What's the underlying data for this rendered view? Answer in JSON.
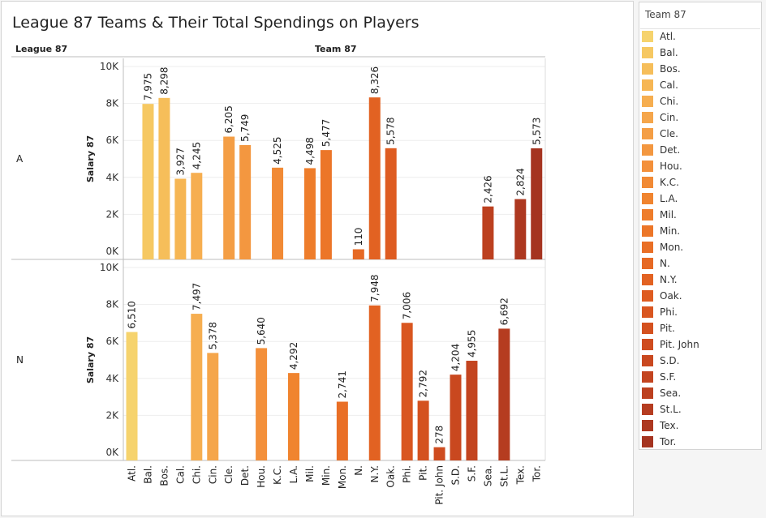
{
  "title": "League 87 Teams & Their Total Spendings on Players",
  "headers": {
    "row_field": "League 87",
    "col_field": "Team 87"
  },
  "legend": {
    "title": "Team 87",
    "items": [
      {
        "label": "Atl.",
        "color": "#f6d36d"
      },
      {
        "label": "Bal.",
        "color": "#f6c862"
      },
      {
        "label": "Bos.",
        "color": "#f6be5a"
      },
      {
        "label": "Cal.",
        "color": "#f6b654"
      },
      {
        "label": "Chi.",
        "color": "#f6ae50"
      },
      {
        "label": "Cin.",
        "color": "#f5a64b"
      },
      {
        "label": "Cle.",
        "color": "#f49e45"
      },
      {
        "label": "Det.",
        "color": "#f39740"
      },
      {
        "label": "Hou.",
        "color": "#f3903b"
      },
      {
        "label": "K.C.",
        "color": "#f18a35"
      },
      {
        "label": "L.A.",
        "color": "#f0842f"
      },
      {
        "label": "Mil.",
        "color": "#ee7d2b"
      },
      {
        "label": "Min.",
        "color": "#ec7628"
      },
      {
        "label": "Mon.",
        "color": "#e96f26"
      },
      {
        "label": "N.",
        "color": "#e66924"
      },
      {
        "label": "N.Y.",
        "color": "#e26222"
      },
      {
        "label": "Oak.",
        "color": "#de5c21"
      },
      {
        "label": "Phi.",
        "color": "#d95620"
      },
      {
        "label": "Pit.",
        "color": "#d4511f"
      },
      {
        "label": "Pit. John",
        "color": "#cf4c1f"
      },
      {
        "label": "S.D.",
        "color": "#c9481f"
      },
      {
        "label": "S.F.",
        "color": "#c3441f"
      },
      {
        "label": "Sea.",
        "color": "#bc401f"
      },
      {
        "label": "St.L.",
        "color": "#b53c20"
      },
      {
        "label": "Tex.",
        "color": "#ad3820"
      },
      {
        "label": "Tor.",
        "color": "#a53420"
      }
    ]
  },
  "chart_data": {
    "type": "bar",
    "title": "League 87 Teams & Their Total Spendings on Players",
    "xlabel": "Team 87",
    "ylabel": "Salary 87",
    "ylim": [
      0,
      10000
    ],
    "yticks": [
      "0K",
      "2K",
      "4K",
      "6K",
      "8K",
      "10K"
    ],
    "ytick_values": [
      0,
      2000,
      4000,
      6000,
      8000,
      10000
    ],
    "categories": [
      "Atl.",
      "Bal.",
      "Bos.",
      "Cal.",
      "Chi.",
      "Cin.",
      "Cle.",
      "Det.",
      "Hou.",
      "K.C.",
      "L.A.",
      "Mil.",
      "Min.",
      "Mon.",
      "N.",
      "N.Y.",
      "Oak.",
      "Phi.",
      "Pit.",
      "Pit. John",
      "S.D.",
      "S.F.",
      "Sea.",
      "St.L.",
      "Tex.",
      "Tor."
    ],
    "series": [
      {
        "name": "A",
        "values": [
          null,
          7975,
          8298,
          3927,
          4245,
          null,
          6205,
          5749,
          null,
          4525,
          null,
          4498,
          5477,
          null,
          110,
          8326,
          5578,
          null,
          null,
          null,
          null,
          null,
          2426,
          null,
          2824,
          5573
        ],
        "labels": [
          null,
          "7,975",
          "8,298",
          "3,927",
          "4,245",
          null,
          "6,205",
          "5,749",
          null,
          "4,525",
          null,
          "4,498",
          "5,477",
          null,
          "110",
          "8,326",
          "5,578",
          null,
          null,
          null,
          null,
          null,
          "2,426",
          null,
          "2,824",
          "5,573"
        ]
      },
      {
        "name": "N",
        "values": [
          6510,
          null,
          null,
          null,
          7497,
          5378,
          null,
          null,
          5640,
          null,
          4292,
          null,
          null,
          2741,
          null,
          7948,
          null,
          7006,
          2792,
          278,
          4204,
          4955,
          null,
          6692,
          null,
          null
        ],
        "labels": [
          "6,510",
          null,
          null,
          null,
          "7,497",
          "5,378",
          null,
          null,
          "5,640",
          null,
          "4,292",
          null,
          null,
          "2,741",
          null,
          "7,948",
          null,
          "7,006",
          "2,792",
          "278",
          "4,204",
          "4,955",
          null,
          "6,692",
          null,
          null
        ]
      }
    ]
  }
}
